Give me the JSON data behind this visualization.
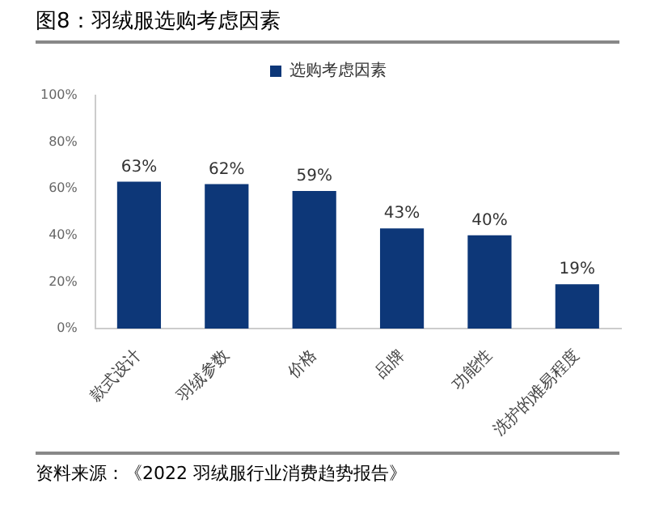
{
  "chart_data": {
    "type": "bar",
    "title": "图8：羽绒服选购考虑因素",
    "categories": [
      "款式设计",
      "羽绒参数",
      "价格",
      "品牌",
      "功能性",
      "洗护的难易程度"
    ],
    "series": [
      {
        "name": "选购考虑因素",
        "color": "#0d3778",
        "values": [
          63,
          62,
          59,
          43,
          40,
          19
        ],
        "value_labels": [
          "63%",
          "62%",
          "59%",
          "43%",
          "40%",
          "19%"
        ]
      }
    ],
    "ylim": [
      0,
      100
    ],
    "yticks": [
      {
        "value": 0,
        "label": "0%"
      },
      {
        "value": 20,
        "label": "20%"
      },
      {
        "value": 40,
        "label": "40%"
      },
      {
        "value": 60,
        "label": "60%"
      },
      {
        "value": 80,
        "label": "80%"
      },
      {
        "value": 100,
        "label": "100%"
      }
    ],
    "grid": false,
    "legend": "top",
    "annotations": [
      "资料来源：《2022 羽绒服行业消费趋势报告》"
    ]
  }
}
